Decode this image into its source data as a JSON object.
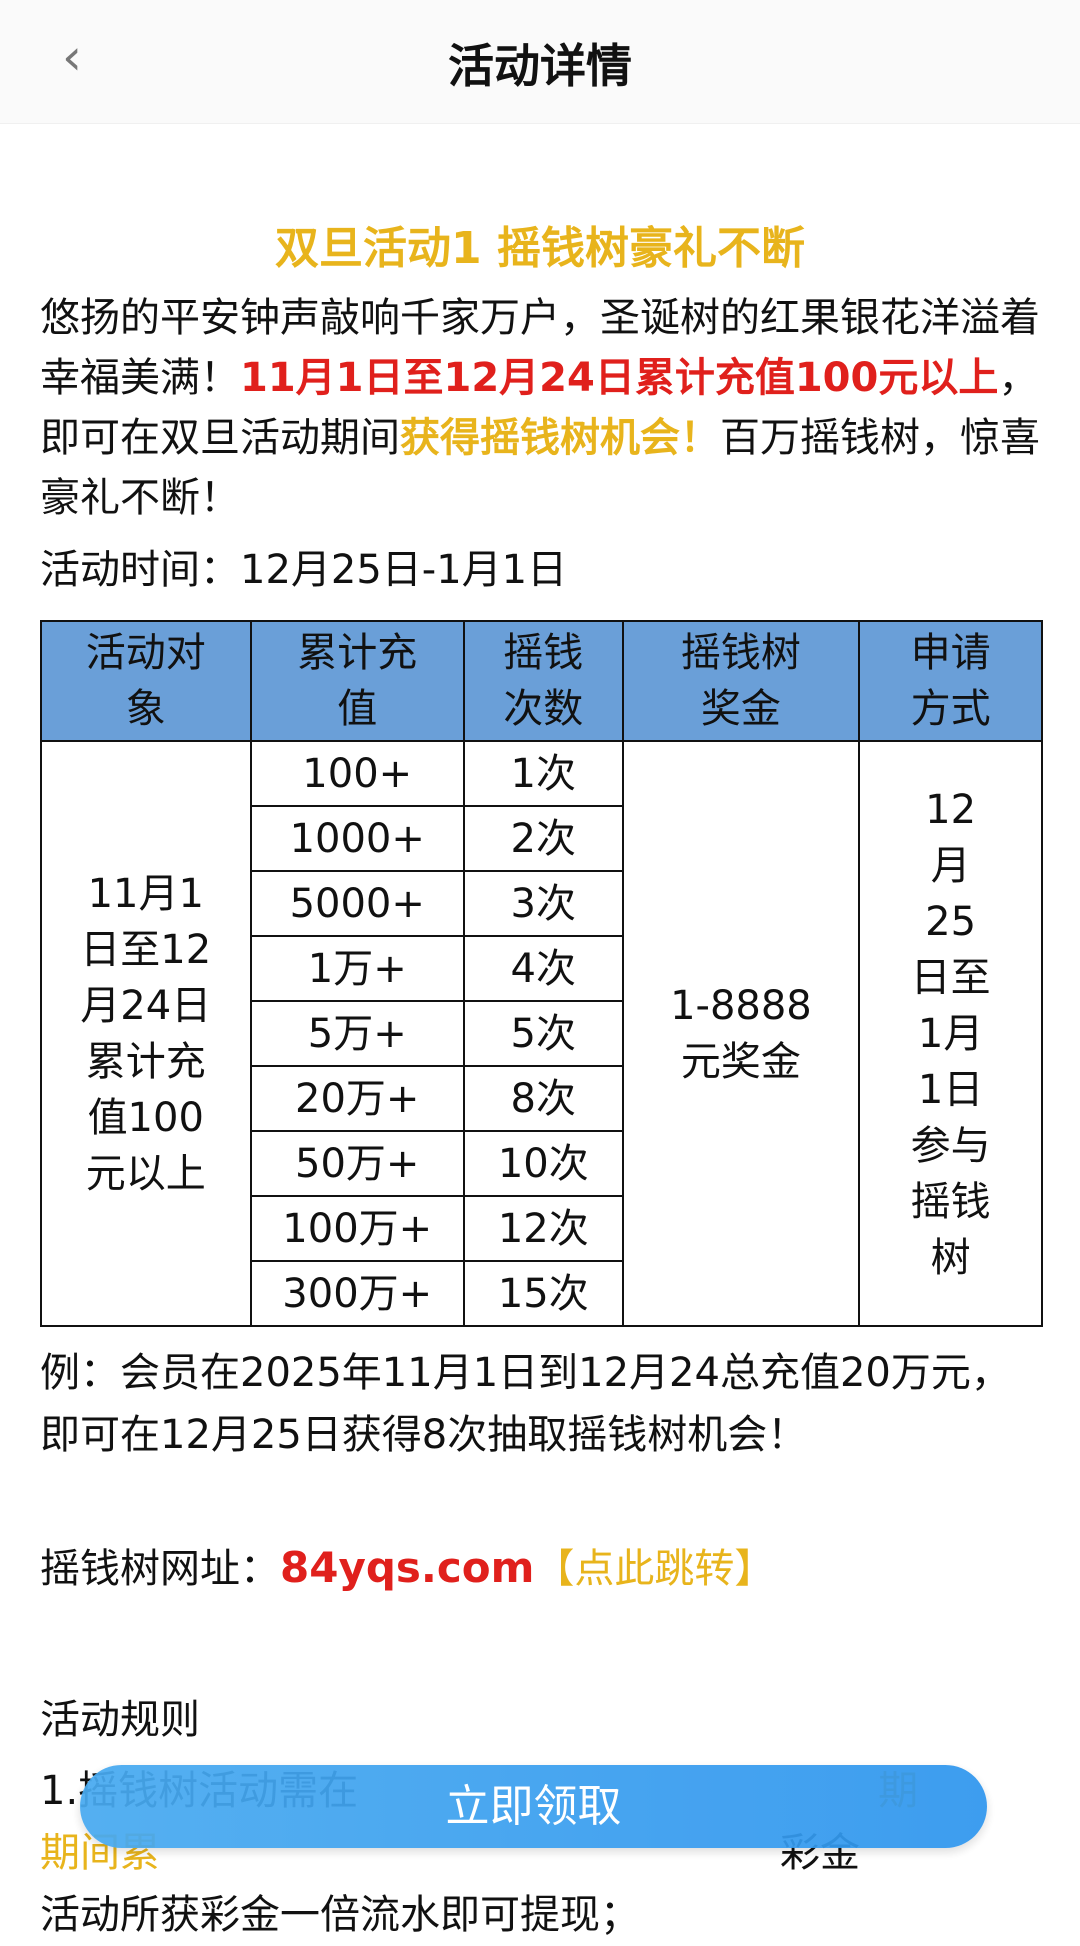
{
  "header": {
    "title": "活动详情",
    "back_icon": "chevron-left-icon"
  },
  "colors": {
    "gold": "#e8b41c",
    "red": "#e0201c",
    "table_header": "#6a9fd8",
    "button": "#2f96ee"
  },
  "article": {
    "title": "双旦活动1 摇钱树豪礼不断",
    "intro": [
      "悠扬的平安钟声敲响千家万户，圣诞树的红果银花洋溢着幸福美满！",
      "11月1日至12月24日累计充值100元以上",
      "，即可在双旦活动期间",
      "获得摇钱树机会！",
      "百万摇钱树，惊喜豪礼不断！"
    ],
    "time": "活动时间：12月25日-1月1日",
    "table": {
      "headers": [
        "活动对象",
        "累计充值",
        "摇钱次数",
        "摇钱树奖金",
        "申请方式"
      ],
      "target": "11月1日至12月24日累计充值100元以上",
      "rows": [
        [
          "100+",
          "1次"
        ],
        [
          "1000+",
          "2次"
        ],
        [
          "5000+",
          "3次"
        ],
        [
          "1万+",
          "4次"
        ],
        [
          "5万+",
          "5次"
        ],
        [
          "20万+",
          "8次"
        ],
        [
          "50万+",
          "10次"
        ],
        [
          "100万+",
          "12次"
        ],
        [
          "300万+",
          "15次"
        ]
      ],
      "bonus": "1-8888元奖金",
      "method": "12月25日至1月1日参与摇钱树"
    },
    "example": "例：会员在2025年11月1日到12月24总充值20万元，即可在12月25日获得8次抽取摇钱树机会！",
    "url_label": "摇钱树网址：",
    "url": "84yqs.com",
    "jump": "【点此跳转】",
    "rules_title": "活动规则",
    "rule1_a": "1.摇钱树活动需在",
    "rule1_b": "期间累",
    "rule1_c": "活动所获彩金一倍流水即可提现；"
  },
  "button": {
    "label": "立即领取"
  }
}
